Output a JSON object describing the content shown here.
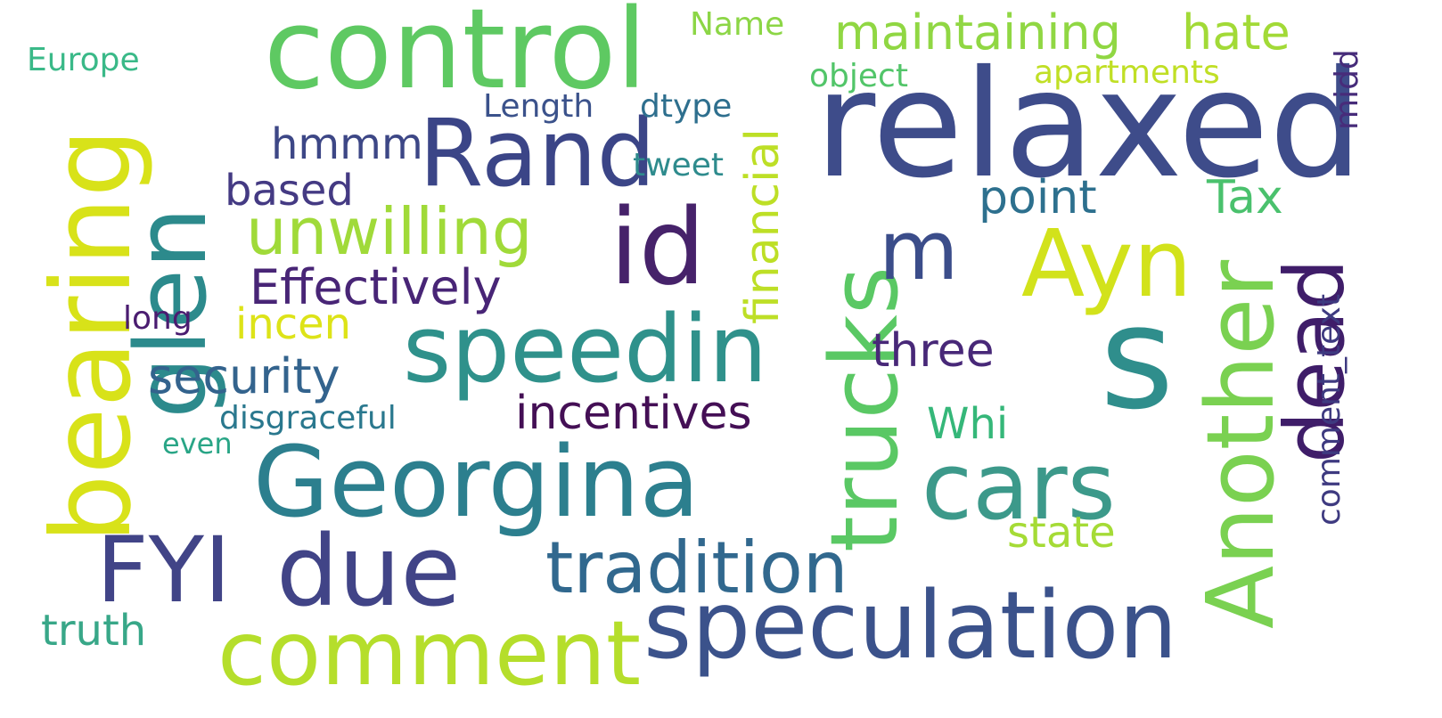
{
  "words": [
    {
      "text": "relaxed",
      "color": "#3e4c8a"
    },
    {
      "text": "control",
      "color": "#5ec962"
    },
    {
      "text": "Rand",
      "color": "#3b4587"
    },
    {
      "text": "glen",
      "color": "#2c8a8c"
    },
    {
      "text": "bearing",
      "color": "#d8e219"
    },
    {
      "text": "id",
      "color": "#46226a"
    },
    {
      "text": "speedin",
      "color": "#2f918b"
    },
    {
      "text": "Georgina",
      "color": "#2c7f8e"
    },
    {
      "text": "trucks",
      "color": "#5ac864"
    },
    {
      "text": "cars",
      "color": "#3c998a"
    },
    {
      "text": "Ayn",
      "color": "#d2e21b"
    },
    {
      "text": "s",
      "color": "#2f8e8c"
    },
    {
      "text": "Another",
      "color": "#7ad151"
    },
    {
      "text": "dead",
      "color": "#3f1d69"
    },
    {
      "text": "FYI",
      "color": "#414487"
    },
    {
      "text": "due",
      "color": "#414487"
    },
    {
      "text": "speculation",
      "color": "#3b528b"
    },
    {
      "text": "comment",
      "color": "#b5de2b"
    },
    {
      "text": "tradition",
      "color": "#31688e"
    },
    {
      "text": "unwilling",
      "color": "#a0da39"
    },
    {
      "text": "m",
      "color": "#3b4d8a"
    },
    {
      "text": "financial",
      "color": "#bddf26"
    },
    {
      "text": "maintaining",
      "color": "#90d743"
    },
    {
      "text": "hate",
      "color": "#a2da37"
    },
    {
      "text": "Effectively",
      "color": "#482576"
    },
    {
      "text": "security",
      "color": "#33638d"
    },
    {
      "text": "incentives",
      "color": "#440f55"
    },
    {
      "text": "three",
      "color": "#482878"
    },
    {
      "text": "point",
      "color": "#2d708e"
    },
    {
      "text": "Tax",
      "color": "#4ac16d"
    },
    {
      "text": "based",
      "color": "#443a83"
    },
    {
      "text": "hmmm",
      "color": "#3d4786"
    },
    {
      "text": "incen",
      "color": "#dde318"
    },
    {
      "text": "Whi",
      "color": "#35b779"
    },
    {
      "text": "state",
      "color": "#a5db36"
    },
    {
      "text": "truth",
      "color": "#38a788"
    },
    {
      "text": "disgraceful",
      "color": "#2a788e"
    },
    {
      "text": "object",
      "color": "#52c569"
    },
    {
      "text": "apartments",
      "color": "#c0df25"
    },
    {
      "text": "Length",
      "color": "#3b528b"
    },
    {
      "text": "dtype",
      "color": "#2e6f8e"
    },
    {
      "text": "tweet",
      "color": "#2e8b8d"
    },
    {
      "text": "Name",
      "color": "#8cd646"
    },
    {
      "text": "Europe",
      "color": "#3ab988"
    },
    {
      "text": "long",
      "color": "#4a1c70"
    },
    {
      "text": "even",
      "color": "#29a586"
    },
    {
      "text": "comment_text",
      "color": "#3e3a80"
    },
    {
      "text": "midd",
      "color": "#472c7a"
    }
  ]
}
